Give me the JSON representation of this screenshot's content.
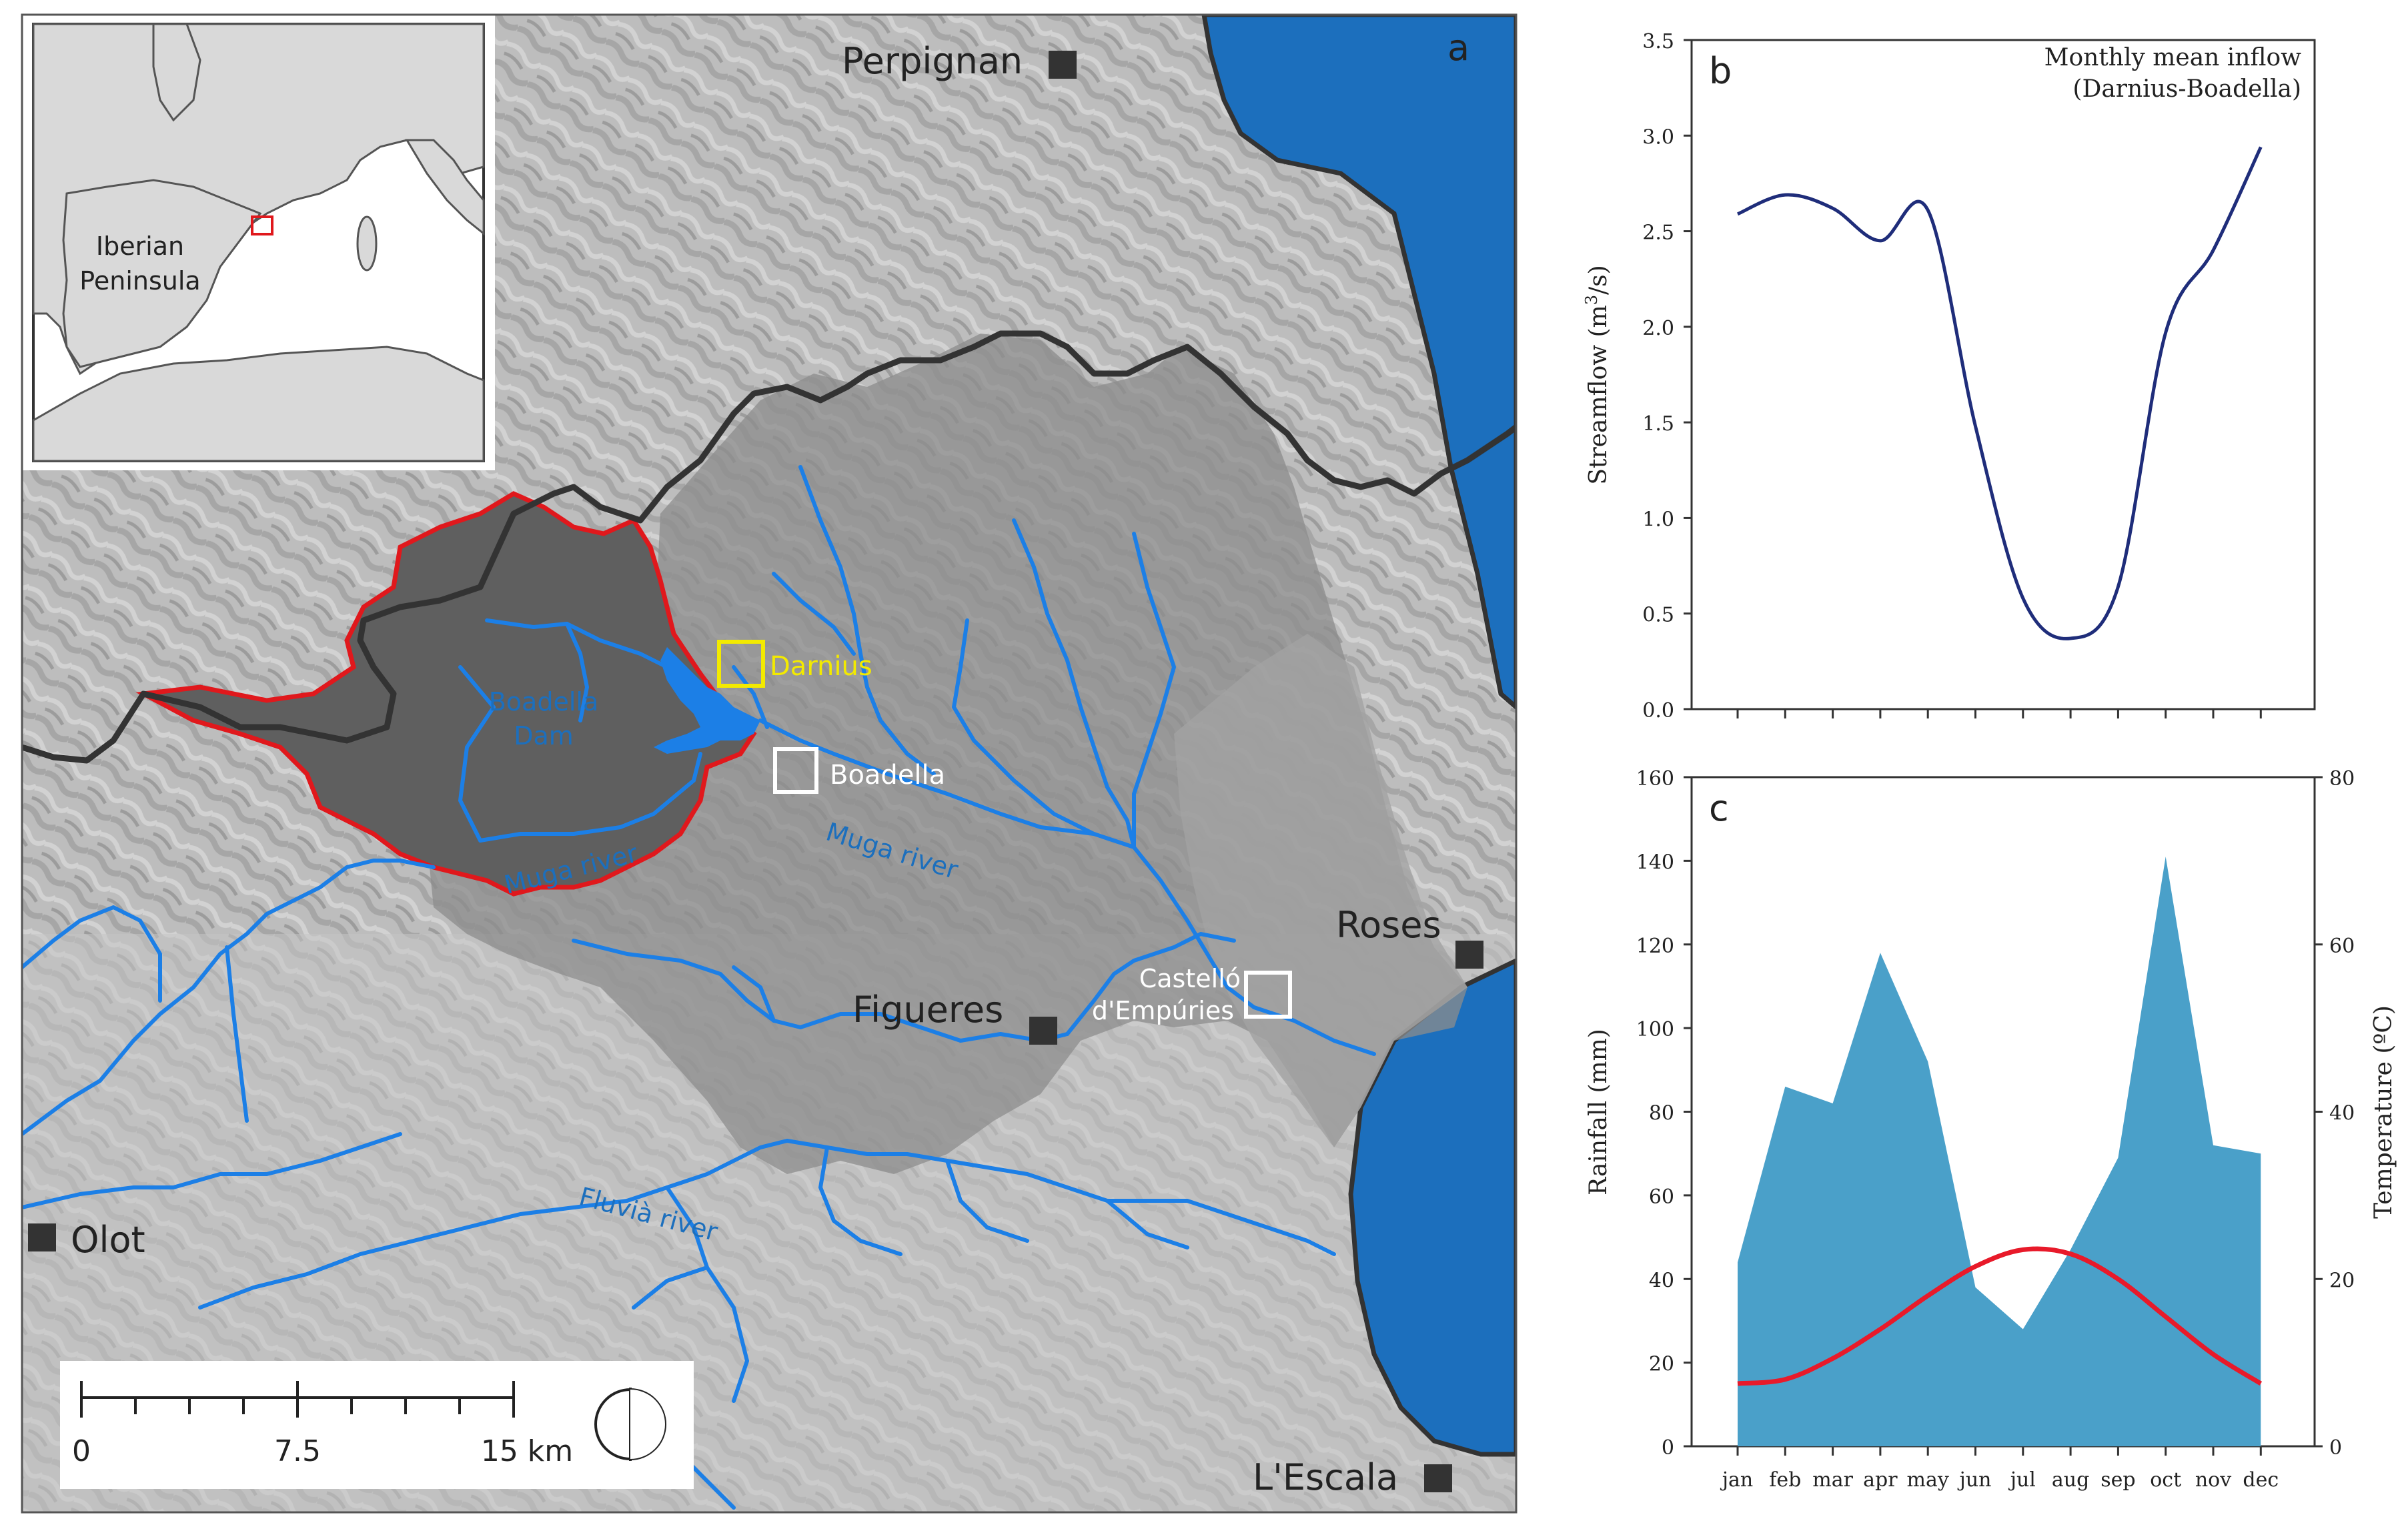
{
  "map": {
    "panel_letter": "a",
    "inset_labels": {
      "region": "Iberian",
      "region_line2": "Peninsula"
    },
    "cities": {
      "perpignan": "Perpignan",
      "figueres": "Figueres",
      "roses": "Roses",
      "olot": "Olot",
      "lescala": "L'Escala"
    },
    "sites": {
      "darnius": "Darnius",
      "boadella": "Boadella",
      "castello_line1": "Castelló",
      "castello_line2": "d'Empúries"
    },
    "features": {
      "dam_line1": "Boadella",
      "dam_line2": "Dam",
      "muga1": "Muga river",
      "muga2": "Muga river",
      "fluvia": "Fluvià river"
    },
    "scalebar": {
      "t0": "0",
      "t1": "7.5",
      "t2": "15 km"
    },
    "colors": {
      "river": "#1c7fe6",
      "sea": "#1c6fbd",
      "catchment_outline": "#e0181c",
      "border": "#333333",
      "darnius_box": "#f3ea00"
    }
  },
  "chart_data": [
    {
      "panel": "b",
      "type": "line",
      "title_line1": "Monthly mean inflow",
      "title_line2": "(Darnius-Boadella)",
      "ylabel": "Streamflow (m3/s)",
      "ylabel_prefix": "Streamflow (m",
      "ylabel_sup": "3",
      "ylabel_suffix": "/s)",
      "ylim": [
        0,
        3.5
      ],
      "yticks": [
        "0.0",
        "0.5",
        "1.0",
        "1.5",
        "2.0",
        "2.5",
        "3.0",
        "3.5"
      ],
      "categories": [
        "jan",
        "feb",
        "mar",
        "apr",
        "may",
        "jun",
        "jul",
        "aug",
        "sep",
        "oct",
        "nov",
        "dec"
      ],
      "series": [
        {
          "values": [
            2.59,
            2.69,
            2.62,
            2.45,
            2.61,
            1.48,
            0.58,
            0.37,
            0.64,
            1.97,
            2.4,
            2.94
          ],
          "color": "#1f2d7a"
        }
      ]
    },
    {
      "panel": "c",
      "type": "area",
      "ylabel": "Rainfall (mm)",
      "ylabel_right": "Temperature (ºC)",
      "ylim": [
        0,
        160
      ],
      "ylim_right": [
        0,
        80
      ],
      "yticks": [
        "0",
        "20",
        "40",
        "60",
        "80",
        "100",
        "120",
        "140",
        "160"
      ],
      "yticks_right": [
        "0",
        "20",
        "40",
        "60",
        "80"
      ],
      "categories": [
        "jan",
        "feb",
        "mar",
        "apr",
        "may",
        "jun",
        "jul",
        "aug",
        "sep",
        "oct",
        "nov",
        "dec"
      ],
      "series": [
        {
          "axis": "left",
          "kind": "area",
          "values": [
            44,
            86,
            82,
            118,
            92,
            38,
            28,
            47,
            69,
            141,
            72,
            70
          ],
          "color": "#4aa0c9"
        },
        {
          "axis": "right",
          "kind": "line",
          "values": [
            7.5,
            8,
            10.5,
            14,
            18,
            21.5,
            23.5,
            23,
            20,
            15.5,
            11,
            7.5
          ],
          "color": "#e81a2a"
        }
      ]
    }
  ]
}
